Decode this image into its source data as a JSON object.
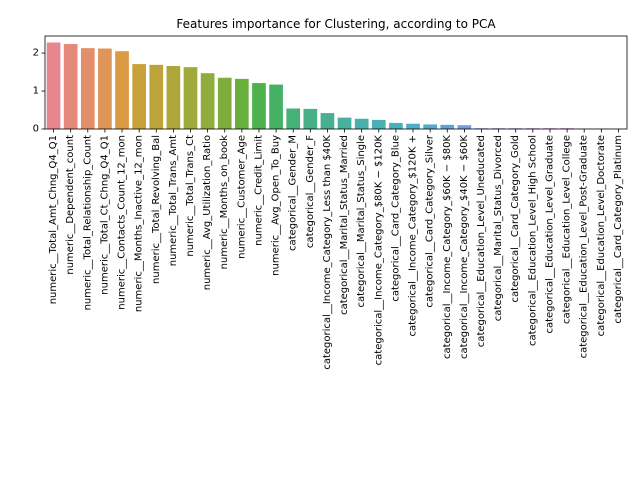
{
  "chart_data": {
    "type": "bar",
    "title": "Features importance for Clustering, according to PCA",
    "xlabel": "",
    "ylabel": "",
    "ylim": [
      0,
      2.45
    ],
    "yticks": [
      "0",
      "1",
      "2"
    ],
    "grid": false,
    "categories": [
      "numeric__Total_Amt_Chng_Q4_Q1",
      "numeric__Dependent_count",
      "numeric__Total_Relationship_Count",
      "numeric__Total_Ct_Chng_Q4_Q1",
      "numeric__Contacts_Count_12_mon",
      "numeric__Months_Inactive_12_mon",
      "numeric__Total_Revolving_Bal",
      "numeric__Total_Trans_Amt",
      "numeric__Total_Trans_Ct",
      "numeric__Avg_Utilization_Ratio",
      "numeric__Months_on_book",
      "numeric__Customer_Age",
      "numeric__Credit_Limit",
      "numeric__Avg_Open_To_Buy",
      "categorical__Gender_M",
      "categorical__Gender_F",
      "categorical__Income_Category_Less than $40K",
      "categorical__Marital_Status_Married",
      "categorical__Marital_Status_Single",
      "categorical__Income_Category_$80K − $120K",
      "categorical__Card_Category_Blue",
      "categorical__Income_Category_$120K +",
      "categorical__Card_Category_Silver",
      "categorical__Income_Category_$60K − $80K",
      "categorical__Income_Category_$40K − $60K",
      "categorical__Education_Level_Uneducated",
      "categorical__Marital_Status_Divorced",
      "categorical__Card_Category_Gold",
      "categorical__Education_Level_High School",
      "categorical__Education_Level_Graduate",
      "categorical__Education_Level_College",
      "categorical__Education_Level_Post-Graduate",
      "categorical__Education_Level_Doctorate",
      "categorical__Card_Category_Platinum"
    ],
    "values": [
      2.28,
      2.24,
      2.13,
      2.12,
      2.05,
      1.71,
      1.69,
      1.66,
      1.63,
      1.47,
      1.35,
      1.32,
      1.21,
      1.17,
      0.54,
      0.53,
      0.42,
      0.3,
      0.27,
      0.24,
      0.16,
      0.14,
      0.12,
      0.11,
      0.1,
      0.02,
      0.02,
      0.02,
      0.02,
      0.02,
      0.02,
      0.01,
      0.01,
      0.005
    ],
    "colors": [
      "#e8858f",
      "#e58a7a",
      "#e38f6b",
      "#e09558",
      "#db9a44",
      "#c9a03a",
      "#bca43a",
      "#aea63a",
      "#a0a93b",
      "#90ac3c",
      "#7ead3d",
      "#68b03e",
      "#4db14e",
      "#44b165",
      "#46b177",
      "#47b086",
      "#48b092",
      "#48b09e",
      "#49b0a9",
      "#4ab0b3",
      "#4baebd",
      "#4dacc7",
      "#55a9d0",
      "#62a4d9",
      "#749ee3",
      "#8998ea",
      "#9e91ee",
      "#b38aee",
      "#c584ea",
      "#d37de3",
      "#df78d8",
      "#e67bc9",
      "#e97fb9",
      "#e884a8"
    ]
  }
}
